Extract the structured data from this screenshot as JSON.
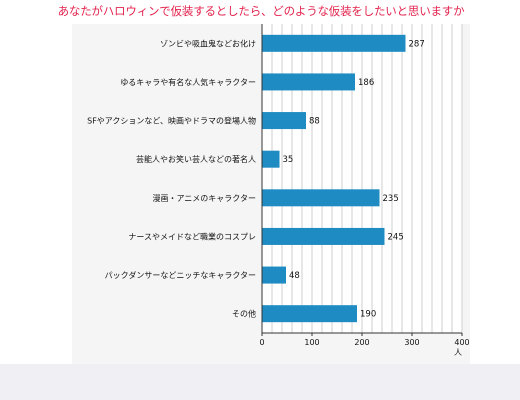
{
  "header": {
    "title": "あなたがハロウィンで仮装するとしたら、どのような仮装をしたいと思いますか"
  },
  "colors": {
    "title": "#e4244e",
    "bar": "#1e8bc3",
    "grid": "#cfcfcf",
    "axis": "#333333",
    "panel": "#f5f5f5"
  },
  "chart_data": {
    "type": "bar",
    "orientation": "horizontal",
    "title": "あなたがハロウィンで仮装するとしたら、どのような仮装をしたいと思いますか",
    "xlabel": "人",
    "ylabel": "",
    "xlim": [
      0,
      400
    ],
    "x_ticks": [
      "0",
      "100",
      "200",
      "300",
      "400"
    ],
    "grid": true,
    "categories": [
      "ゾンビや吸血鬼などお化け",
      "ゆるキャラや有名な人気キャラクター",
      "SFやアクションなど、映画やドラマの登場人物",
      "芸能人やお笑い芸人などの著名人",
      "漫画・アニメのキャラクター",
      "ナースやメイドなど職業のコスプレ",
      "パックダンサーなどニッチなキャラクター",
      "その他"
    ],
    "values": [
      287,
      186,
      88,
      35,
      235,
      245,
      48,
      190
    ]
  }
}
